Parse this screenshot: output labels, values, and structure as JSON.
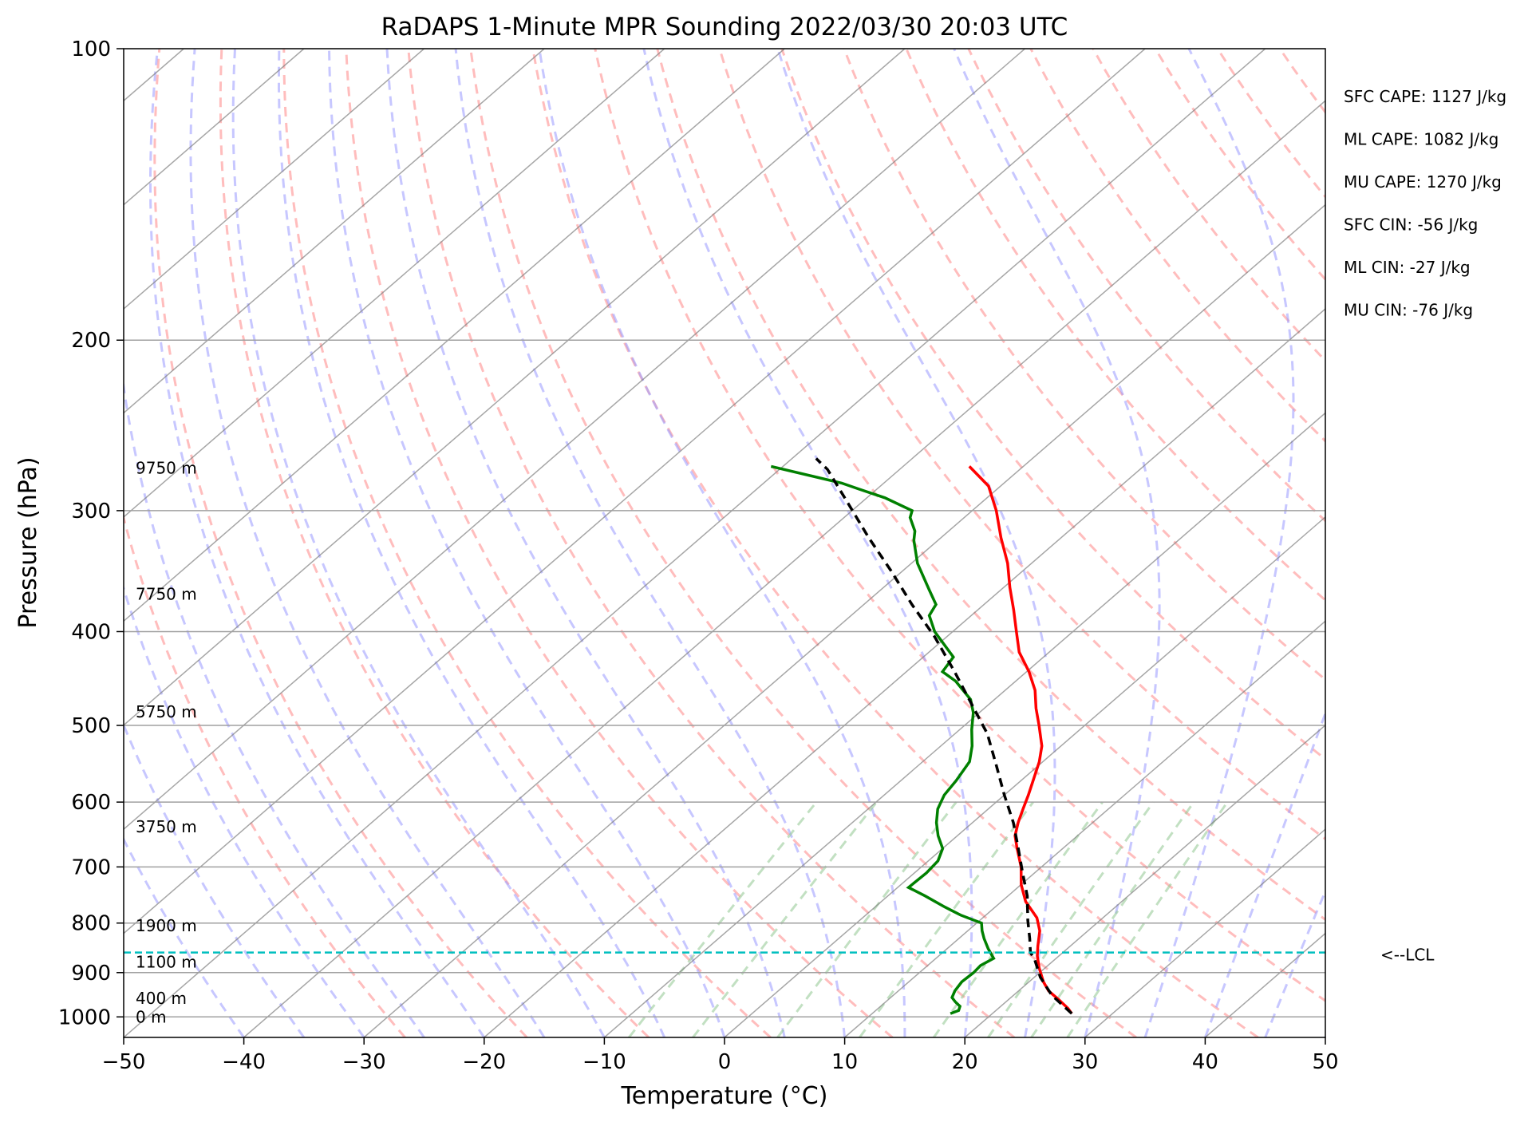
{
  "chart_data": {
    "type": "line",
    "subtype": "skew-T log-p sounding",
    "title": "RaDAPS 1-Minute MPR Sounding 2022/03/30 20:03 UTC",
    "xlabel": "Temperature (°C)",
    "ylabel": "Pressure (hPa)",
    "xlim": [
      -50,
      50
    ],
    "ylim": [
      1050,
      100
    ],
    "yscale": "log",
    "xticks": [
      -50,
      -40,
      -30,
      -20,
      -10,
      0,
      10,
      20,
      30,
      40,
      50
    ],
    "yticks": [
      100,
      200,
      300,
      400,
      500,
      600,
      700,
      800,
      900,
      1000
    ],
    "grid": true,
    "colors": {
      "temperature": "#ff0000",
      "dewpoint": "#008000",
      "parcel": "#000000",
      "lcl": "#00bfbf",
      "dry_adiabats": "#ff9999",
      "moist_adiabats": "#9999ff",
      "mixing_ratio": "#99cc99",
      "isotherms": "#808080"
    },
    "series": [
      {
        "name": "Temperature",
        "points": [
          [
            26.6,
            992
          ],
          [
            25.8,
            980
          ],
          [
            24.2,
            960
          ],
          [
            22.5,
            940
          ],
          [
            21.2,
            920
          ],
          [
            19.5,
            890
          ],
          [
            18.2,
            865
          ],
          [
            17.3,
            845
          ],
          [
            16.0,
            815
          ],
          [
            14.5,
            790
          ],
          [
            12.0,
            760
          ],
          [
            10.0,
            730
          ],
          [
            8.3,
            700
          ],
          [
            6.2,
            670
          ],
          [
            4.8,
            650
          ],
          [
            3.8,
            630
          ],
          [
            2.9,
            610
          ],
          [
            2.0,
            590
          ],
          [
            1.0,
            570
          ],
          [
            -0.3,
            545
          ],
          [
            -1.6,
            525
          ],
          [
            -3.8,
            500
          ],
          [
            -5.7,
            480
          ],
          [
            -7.5,
            460
          ],
          [
            -9.8,
            440
          ],
          [
            -12.5,
            420
          ],
          [
            -14.7,
            400
          ],
          [
            -17.0,
            380
          ],
          [
            -19.5,
            360
          ],
          [
            -22.0,
            340
          ],
          [
            -25.0,
            320
          ],
          [
            -28.0,
            300
          ],
          [
            -31.0,
            283
          ],
          [
            -34.5,
            270
          ]
        ]
      },
      {
        "name": "Dewpoint",
        "points": [
          [
            16.5,
            992
          ],
          [
            16.9,
            985
          ],
          [
            16.6,
            975
          ],
          [
            15.8,
            965
          ],
          [
            15.1,
            955
          ],
          [
            14.7,
            940
          ],
          [
            14.4,
            920
          ],
          [
            14.5,
            900
          ],
          [
            14.4,
            885
          ],
          [
            14.8,
            870
          ],
          [
            13.4,
            850
          ],
          [
            12.1,
            830
          ],
          [
            11.2,
            815
          ],
          [
            10.4,
            800
          ],
          [
            7.9,
            785
          ],
          [
            5.8,
            770
          ],
          [
            3.1,
            750
          ],
          [
            0.9,
            735
          ],
          [
            1.0,
            710
          ],
          [
            0.8,
            690
          ],
          [
            0.0,
            670
          ],
          [
            -1.6,
            650
          ],
          [
            -3.0,
            630
          ],
          [
            -4.2,
            610
          ],
          [
            -5.0,
            590
          ],
          [
            -5.4,
            570
          ],
          [
            -6.1,
            545
          ],
          [
            -7.4,
            525
          ],
          [
            -9.0,
            505
          ],
          [
            -10.5,
            485
          ],
          [
            -12.0,
            470
          ],
          [
            -15.0,
            450
          ],
          [
            -17.0,
            440
          ],
          [
            -17.5,
            425
          ],
          [
            -21.5,
            400
          ],
          [
            -23.5,
            385
          ],
          [
            -24.0,
            375
          ],
          [
            -26.0,
            362
          ],
          [
            -29.5,
            340
          ],
          [
            -32.0,
            322
          ],
          [
            -32.8,
            315
          ],
          [
            -34.5,
            305
          ],
          [
            -35.0,
            300
          ],
          [
            -38.5,
            291
          ],
          [
            -41.5,
            285
          ],
          [
            -43.5,
            281
          ],
          [
            -51.0,
            270
          ]
        ]
      },
      {
        "name": "Parcel",
        "points": [
          [
            26.6,
            992
          ],
          [
            23.2,
            950
          ],
          [
            20.5,
            910
          ],
          [
            18.3,
            872
          ],
          [
            17.3,
            858
          ],
          [
            15.9,
            830
          ],
          [
            14.0,
            795
          ],
          [
            11.6,
            750
          ],
          [
            9.0,
            710
          ],
          [
            6.3,
            670
          ],
          [
            3.4,
            630
          ],
          [
            0.0,
            590
          ],
          [
            -3.5,
            550
          ],
          [
            -7.3,
            510
          ],
          [
            -11.5,
            475
          ],
          [
            -16.0,
            440
          ],
          [
            -21.0,
            405
          ],
          [
            -26.0,
            375
          ],
          [
            -31.0,
            346
          ],
          [
            -36.0,
            320
          ],
          [
            -41.0,
            295
          ],
          [
            -46.0,
            272
          ],
          [
            -48.0,
            265
          ]
        ]
      }
    ],
    "lcl": {
      "pressure": 858,
      "label": "<--LCL"
    },
    "height_labels": [
      {
        "text": "9750 m",
        "pressure": 271
      },
      {
        "text": "7750 m",
        "pressure": 366
      },
      {
        "text": "5750 m",
        "pressure": 484
      },
      {
        "text": "3750 m",
        "pressure": 636
      },
      {
        "text": "1900 m",
        "pressure": 805
      },
      {
        "text": "1100 m",
        "pressure": 878
      },
      {
        "text": "400 m",
        "pressure": 957
      },
      {
        "text": "0 m",
        "pressure": 1000
      }
    ],
    "annotations": [
      "SFC CAPE: 1127 J/kg",
      "ML CAPE: 1082 J/kg",
      "MU CAPE: 1270 J/kg",
      "SFC CIN: -56 J/kg",
      "ML CIN: -27 J/kg",
      "MU CIN: -76 J/kg"
    ]
  }
}
